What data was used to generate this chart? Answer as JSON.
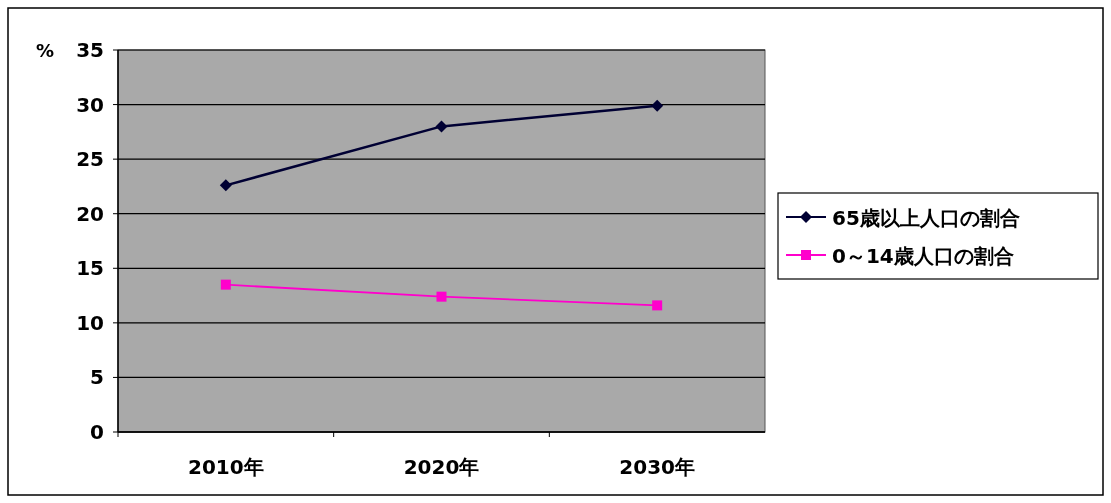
{
  "chart_data": {
    "type": "line",
    "ylabel": "%",
    "categories": [
      "2010年",
      "2020年",
      "2030年"
    ],
    "series": [
      {
        "name": "65歳以上人口の割合",
        "color": "#000033",
        "marker": "diamond",
        "values": [
          22.6,
          28.0,
          29.9
        ]
      },
      {
        "name": "0～14歳人口の割合",
        "color": "#ff00cc",
        "marker": "square",
        "values": [
          13.5,
          12.4,
          11.6
        ]
      }
    ],
    "ylim": [
      0,
      35
    ],
    "yticks": [
      0,
      5,
      10,
      15,
      20,
      25,
      30,
      35
    ],
    "grid": "y",
    "legend": "right"
  }
}
